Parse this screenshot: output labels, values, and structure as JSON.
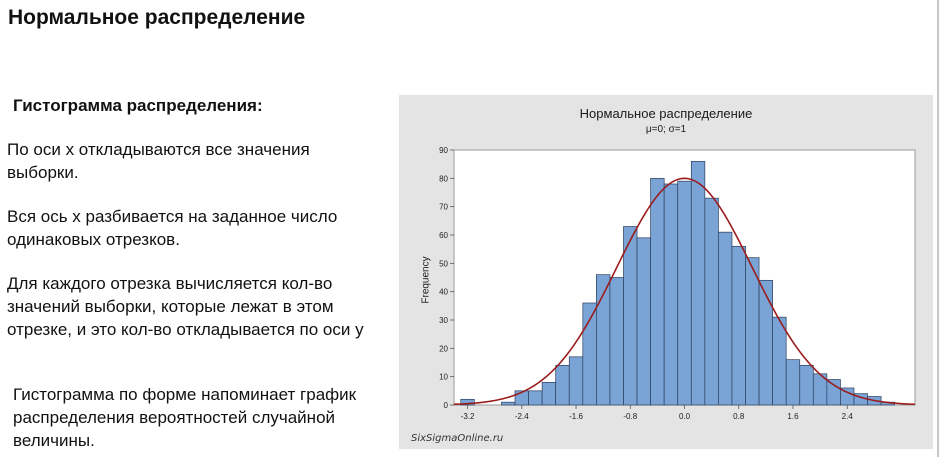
{
  "slide": {
    "title": "Нормальное распределение",
    "subheading": "Гистограмма распределения:",
    "paragraphs": [
      "По оси х откладываются все значения выборки.",
      "Вся ось х разбивается на заданное число одинаковых отрезков.",
      "Для каждого отрезка вычисляется кол-во значений выборки, которые лежат в этом отрезке, и это кол-во откладывается по оси у",
      "Гистограмма по форме напоминает график распределения вероятностей случайной величины."
    ]
  },
  "figure": {
    "watermark": "SixSigmaOnline.ru"
  },
  "chart_data": {
    "type": "bar",
    "title": "Нормальное распределение",
    "subtitle": "μ=0; σ=1",
    "xlabel": "",
    "ylabel": "Frequency",
    "xlim": [
      -3.4,
      3.4
    ],
    "ylim": [
      0,
      90
    ],
    "x_ticks": [
      -3.2,
      -2.4,
      -1.6,
      -0.8,
      0.0,
      0.8,
      1.6,
      2.4
    ],
    "x_tick_labels": [
      "-3.2",
      "-2.4",
      "-1.6",
      "-0.8",
      "0.0",
      "0.8",
      "1.6",
      "2.4"
    ],
    "y_ticks": [
      0,
      10,
      20,
      30,
      40,
      50,
      60,
      70,
      80,
      90
    ],
    "bin_width": 0.2,
    "bins": [
      {
        "x": -3.2,
        "count": 2
      },
      {
        "x": -3.0,
        "count": 0
      },
      {
        "x": -2.8,
        "count": 0
      },
      {
        "x": -2.6,
        "count": 1
      },
      {
        "x": -2.4,
        "count": 5
      },
      {
        "x": -2.2,
        "count": 5
      },
      {
        "x": -2.0,
        "count": 8
      },
      {
        "x": -1.8,
        "count": 14
      },
      {
        "x": -1.6,
        "count": 17
      },
      {
        "x": -1.4,
        "count": 36
      },
      {
        "x": -1.2,
        "count": 46
      },
      {
        "x": -1.0,
        "count": 45
      },
      {
        "x": -0.8,
        "count": 63
      },
      {
        "x": -0.6,
        "count": 59
      },
      {
        "x": -0.4,
        "count": 80
      },
      {
        "x": -0.2,
        "count": 78
      },
      {
        "x": 0.0,
        "count": 79
      },
      {
        "x": 0.2,
        "count": 86
      },
      {
        "x": 0.4,
        "count": 73
      },
      {
        "x": 0.6,
        "count": 61
      },
      {
        "x": 0.8,
        "count": 56
      },
      {
        "x": 1.0,
        "count": 52
      },
      {
        "x": 1.2,
        "count": 44
      },
      {
        "x": 1.4,
        "count": 31
      },
      {
        "x": 1.6,
        "count": 16
      },
      {
        "x": 1.8,
        "count": 14
      },
      {
        "x": 2.0,
        "count": 11
      },
      {
        "x": 2.2,
        "count": 9
      },
      {
        "x": 2.4,
        "count": 6
      },
      {
        "x": 2.6,
        "count": 4
      },
      {
        "x": 2.8,
        "count": 3
      },
      {
        "x": 3.0,
        "count": 1
      }
    ],
    "fit_curve": {
      "type": "normal",
      "mean": 0,
      "sd": 1,
      "peak": 80
    },
    "colors": {
      "bar_fill": "#7aa3d6",
      "bar_stroke": "#2d3f5c",
      "curve": "#9b1c1c",
      "panel_bg": "#e4e4e4",
      "plot_bg": "#ffffff"
    },
    "grid": false
  }
}
